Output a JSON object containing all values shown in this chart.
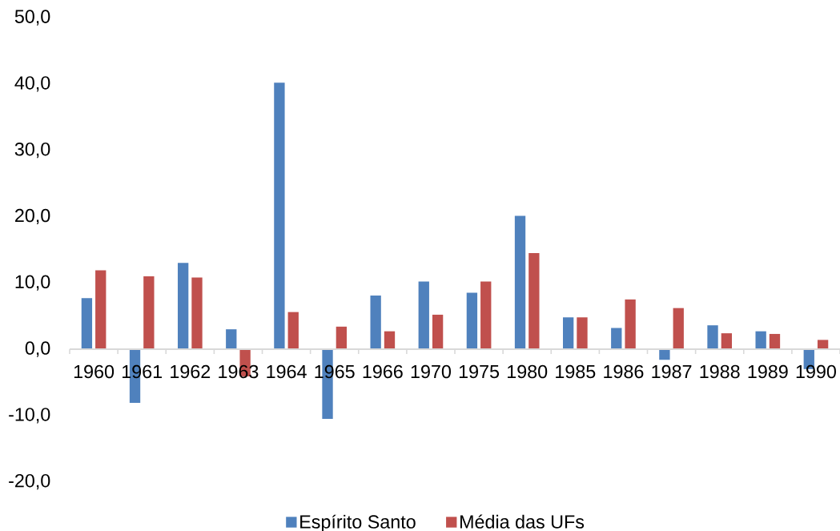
{
  "chart_data": {
    "type": "bar",
    "categories": [
      "1960",
      "1961",
      "1962",
      "1963",
      "1964",
      "1965",
      "1966",
      "1970",
      "1975",
      "1980",
      "1985",
      "1986",
      "1987",
      "1988",
      "1989",
      "1990"
    ],
    "series": [
      {
        "name": "Espírito Santo",
        "color": "#4f81bd",
        "values": [
          7.7,
          -8.1,
          13.0,
          3.0,
          40.2,
          -10.5,
          8.1,
          10.2,
          8.5,
          20.1,
          4.8,
          3.2,
          -1.6,
          3.6,
          2.7,
          -3.0
        ]
      },
      {
        "name": "Média das UFs",
        "color": "#c0504d",
        "values": [
          11.9,
          11.0,
          10.8,
          -4.1,
          5.6,
          3.4,
          2.7,
          5.2,
          10.2,
          14.5,
          4.8,
          7.5,
          6.2,
          2.4,
          2.3,
          1.4
        ]
      }
    ],
    "ylim": [
      -20,
      50
    ],
    "yticks": [
      {
        "value": -20,
        "label": "-20,0"
      },
      {
        "value": -10,
        "label": "-10,0"
      },
      {
        "value": 0,
        "label": "0,0"
      },
      {
        "value": 10,
        "label": "10,0"
      },
      {
        "value": 20,
        "label": "20,0"
      },
      {
        "value": 30,
        "label": "30,0"
      },
      {
        "value": 40,
        "label": "40,0"
      },
      {
        "value": 50,
        "label": "50,0"
      }
    ],
    "legend": "bottom"
  }
}
